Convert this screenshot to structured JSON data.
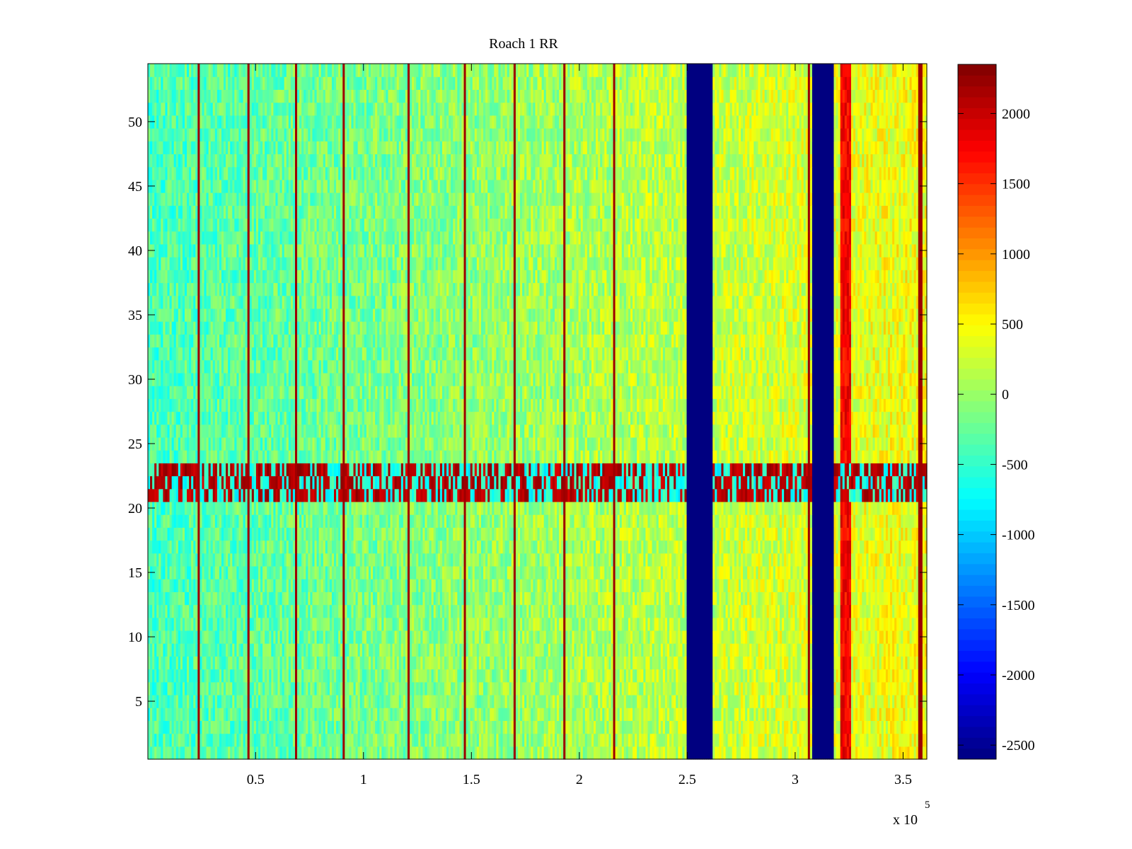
{
  "chart_data": {
    "type": "heatmap",
    "title": "Roach 1 RR",
    "xlabel": "",
    "ylabel": "",
    "x_scale_label": "x 10",
    "x_scale_exponent": "5",
    "xlim": [
      0.001,
      3.61
    ],
    "ylim": [
      0.5,
      54.5
    ],
    "x_ticks": [
      0.5,
      1,
      1.5,
      2,
      2.5,
      3,
      3.5
    ],
    "x_tick_labels": [
      "0.5",
      "1",
      "1.5",
      "2",
      "2.5",
      "3",
      "3.5"
    ],
    "y_ticks": [
      5,
      10,
      15,
      20,
      25,
      30,
      35,
      40,
      45,
      50
    ],
    "y_tick_labels": [
      "5",
      "10",
      "15",
      "20",
      "25",
      "30",
      "35",
      "40",
      "45",
      "50"
    ],
    "colorbar": {
      "colormap": "jet",
      "range": [
        -2600,
        2350
      ],
      "ticks": [
        2000,
        1500,
        1000,
        500,
        0,
        -500,
        -1000,
        -1500,
        -2000,
        -2500
      ],
      "tick_labels": [
        "2000",
        "1500",
        "1000",
        "500",
        "0",
        "-500",
        "-1000",
        "-1500",
        "-2000",
        "-2500"
      ]
    },
    "field": {
      "baseline_left": -400,
      "baseline_right": 450,
      "noise_amplitude": 350,
      "hot_band_rows": [
        21,
        22,
        23
      ],
      "hot_band_value": 1900,
      "dropout_columns_x": [
        [
          2.5,
          2.62
        ],
        [
          3.08,
          3.18
        ]
      ],
      "dropout_value": -2600,
      "hot_columns_x": [
        0.24,
        0.47,
        0.69,
        0.91,
        1.21,
        1.47,
        1.7,
        1.93,
        2.16,
        3.06,
        3.58
      ],
      "warm_column_x": [
        3.21,
        3.26
      ],
      "warm_column_value": 1500
    }
  }
}
